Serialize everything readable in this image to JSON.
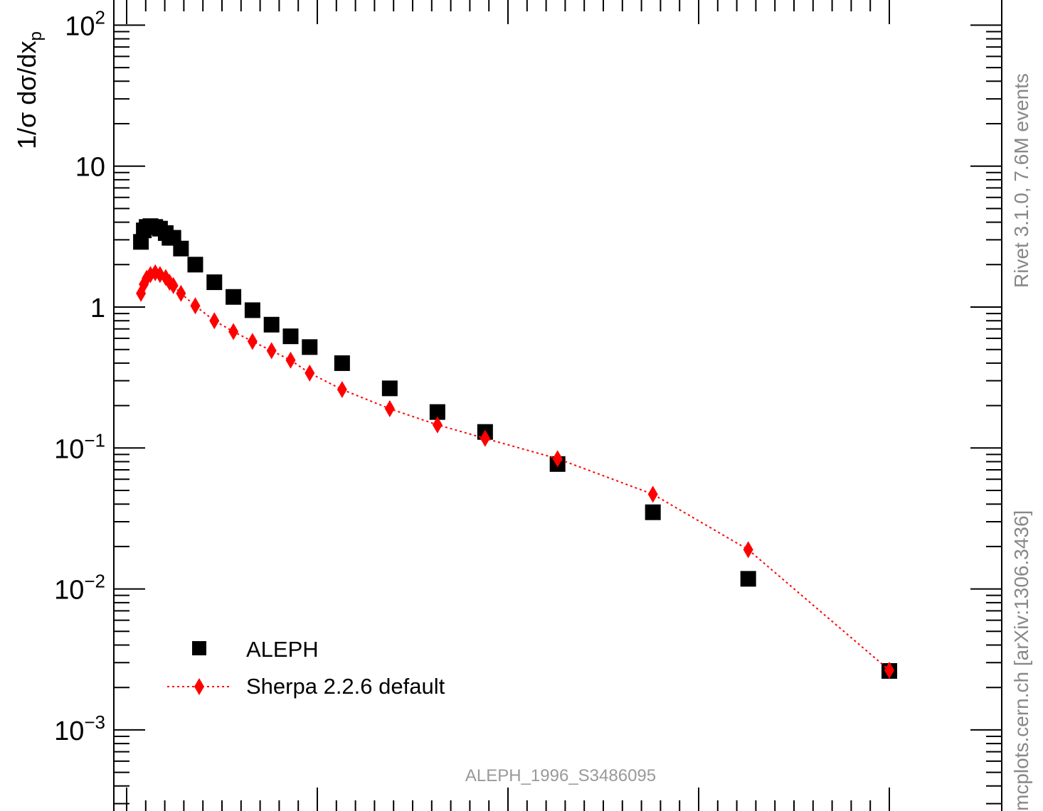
{
  "chart_data": {
    "type": "scatter",
    "title": "",
    "ylabel": "1/σ dσ/dx_p",
    "xlabel": "",
    "yscale": "log",
    "xlim": [
      0,
      0.4
    ],
    "ylim": [
      0.0003,
      150
    ],
    "y_tick_labels": [
      {
        "base": "10",
        "exp": "2"
      },
      {
        "base": "10",
        "exp": ""
      },
      {
        "base": "1",
        "exp": ""
      },
      {
        "base": "10",
        "exp": "−1"
      },
      {
        "base": "10",
        "exp": "−2"
      },
      {
        "base": "10",
        "exp": "−3"
      }
    ],
    "legend": {
      "position": "bottom-left"
    },
    "series": [
      {
        "name": "ALEPH",
        "marker": "square",
        "color": "#000000",
        "x": [
          0.0075,
          0.009,
          0.0105,
          0.0125,
          0.015,
          0.0175,
          0.0205,
          0.0225,
          0.0245,
          0.0285,
          0.036,
          0.046,
          0.056,
          0.066,
          0.076,
          0.086,
          0.096,
          0.113,
          0.138,
          0.163,
          0.188,
          0.226,
          0.276,
          0.326,
          0.4
        ],
        "y": [
          2.9,
          3.5,
          3.7,
          3.75,
          3.7,
          3.6,
          3.35,
          3.1,
          3.1,
          2.6,
          2.0,
          1.5,
          1.18,
          0.95,
          0.75,
          0.62,
          0.52,
          0.4,
          0.265,
          0.18,
          0.13,
          0.077,
          0.035,
          0.0118,
          0.00262
        ]
      },
      {
        "name": "Sherpa 2.2.6 default",
        "marker": "diamond",
        "line": "dotted",
        "color": "#ff0000",
        "x": [
          0.0075,
          0.009,
          0.0105,
          0.0125,
          0.015,
          0.0175,
          0.0205,
          0.0225,
          0.0245,
          0.0285,
          0.036,
          0.046,
          0.056,
          0.066,
          0.076,
          0.086,
          0.096,
          0.113,
          0.138,
          0.163,
          0.188,
          0.226,
          0.276,
          0.326,
          0.4
        ],
        "y": [
          1.25,
          1.45,
          1.6,
          1.7,
          1.75,
          1.7,
          1.62,
          1.5,
          1.42,
          1.25,
          1.02,
          0.8,
          0.67,
          0.57,
          0.49,
          0.42,
          0.34,
          0.26,
          0.19,
          0.146,
          0.117,
          0.084,
          0.047,
          0.019,
          0.00265
        ]
      }
    ]
  },
  "side_label_top": "Rivet 3.1.0,  7.6M events",
  "side_label_bottom": "mcplots.cern.ch [arXiv:1306.3436]",
  "analysis_label": "ALEPH_1996_S3486095"
}
